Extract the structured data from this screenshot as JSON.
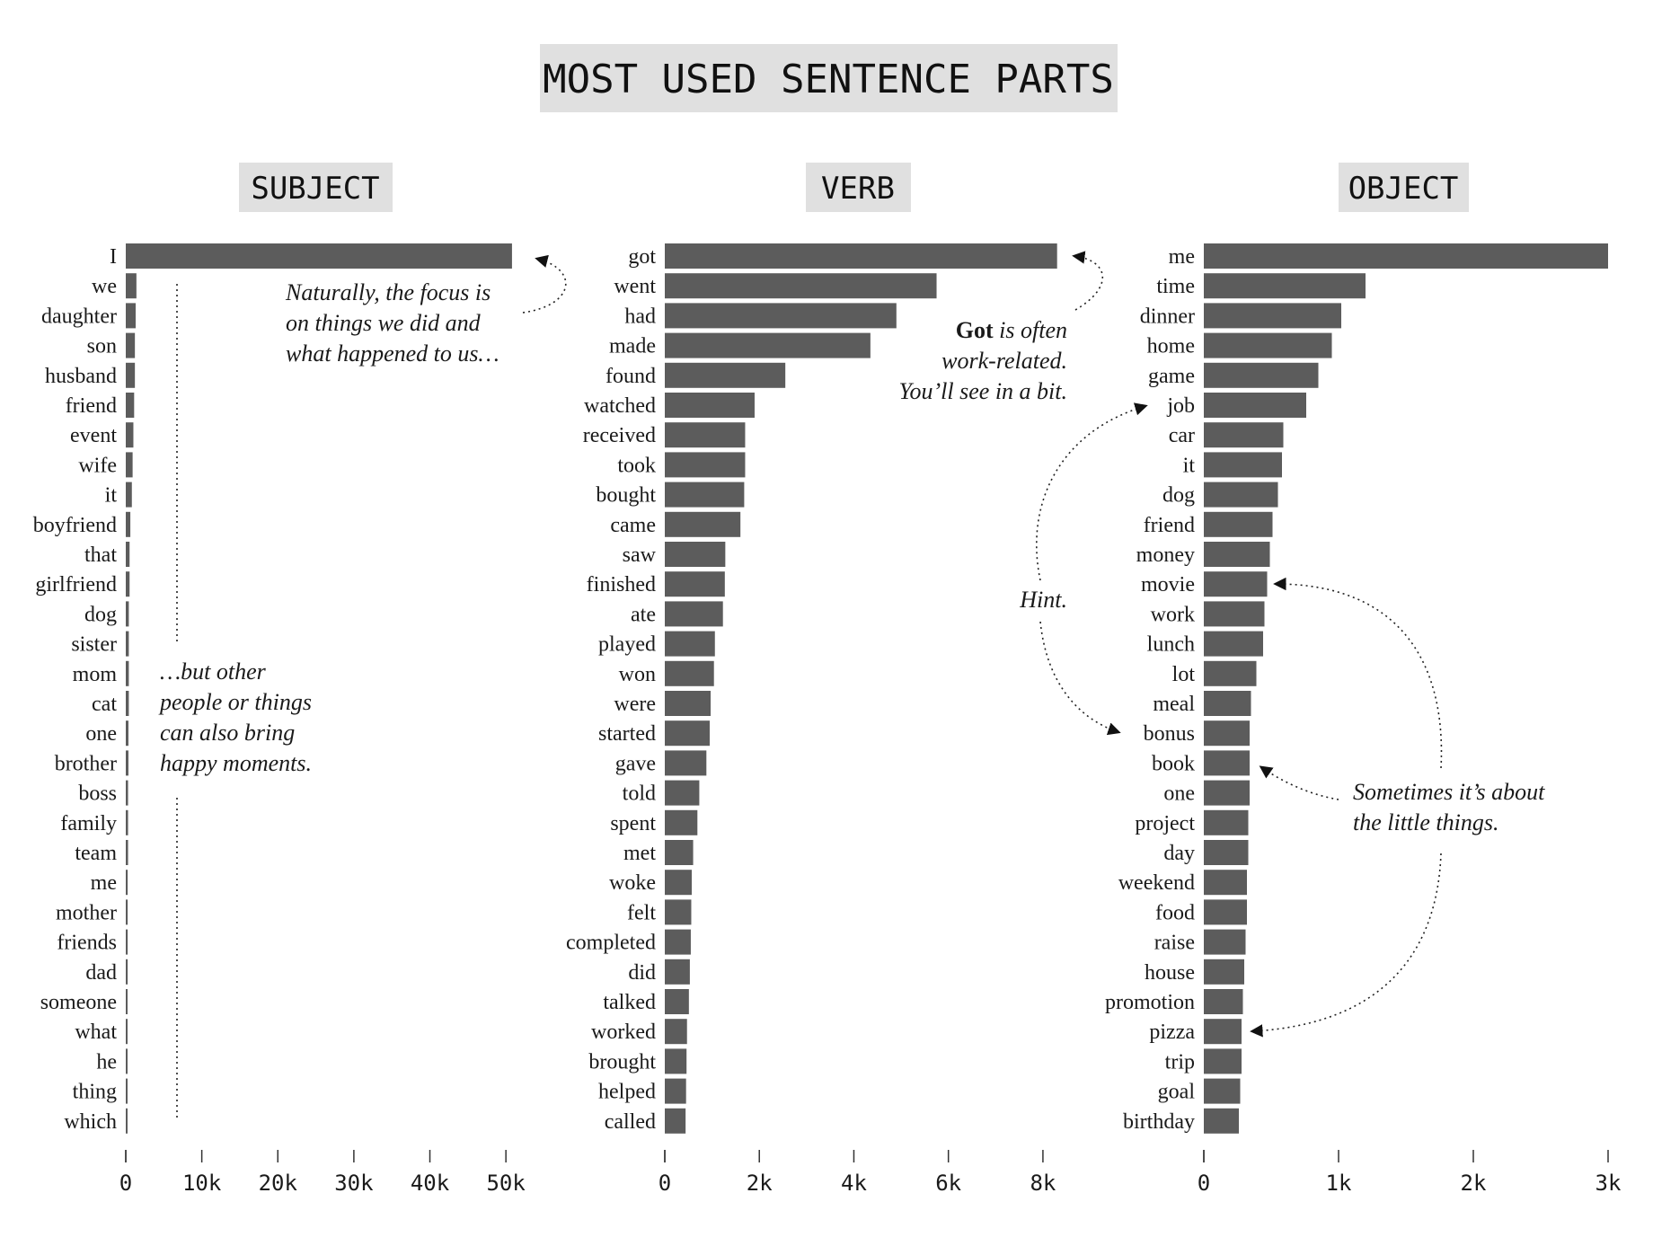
{
  "title": "MOST USED SENTENCE PARTS",
  "colors": {
    "bar": "#5c5c5c",
    "title_box": "#e0e0e0",
    "text": "#1a1a1a"
  },
  "chart_data": [
    {
      "type": "bar",
      "orientation": "horizontal",
      "title": "SUBJECT",
      "categories": [
        "I",
        "we",
        "daughter",
        "son",
        "husband",
        "friend",
        "event",
        "wife",
        "it",
        "boyfriend",
        "that",
        "girlfriend",
        "dog",
        "sister",
        "mom",
        "cat",
        "one",
        "brother",
        "boss",
        "family",
        "team",
        "me",
        "mother",
        "friends",
        "dad",
        "someone",
        "what",
        "he",
        "thing",
        "which"
      ],
      "values": [
        50800,
        1400,
        1300,
        1200,
        1200,
        1100,
        1000,
        900,
        800,
        600,
        500,
        500,
        400,
        400,
        400,
        400,
        350,
        350,
        300,
        300,
        300,
        250,
        250,
        250,
        250,
        200,
        200,
        200,
        200,
        200
      ],
      "xlim": [
        0,
        54000
      ],
      "xticks": [
        0,
        10000,
        20000,
        30000,
        40000,
        50000
      ],
      "xtick_labels": [
        "0",
        "10k",
        "20k",
        "30k",
        "40k",
        "50k"
      ],
      "grid": false
    },
    {
      "type": "bar",
      "orientation": "horizontal",
      "title": "VERB",
      "categories": [
        "got",
        "went",
        "had",
        "made",
        "found",
        "watched",
        "received",
        "took",
        "bought",
        "came",
        "saw",
        "finished",
        "ate",
        "played",
        "won",
        "were",
        "started",
        "gave",
        "told",
        "spent",
        "met",
        "woke",
        "felt",
        "completed",
        "did",
        "talked",
        "worked",
        "brought",
        "helped",
        "called"
      ],
      "values": [
        8300,
        5750,
        4900,
        4350,
        2550,
        1900,
        1700,
        1700,
        1680,
        1600,
        1280,
        1270,
        1230,
        1060,
        1040,
        970,
        950,
        880,
        730,
        690,
        600,
        570,
        560,
        550,
        530,
        510,
        470,
        460,
        450,
        440
      ],
      "xlim": [
        0,
        8800
      ],
      "xticks": [
        0,
        2000,
        4000,
        6000,
        8000
      ],
      "xtick_labels": [
        "0",
        "2k",
        "4k",
        "6k",
        "8k"
      ],
      "grid": false
    },
    {
      "type": "bar",
      "orientation": "horizontal",
      "title": "OBJECT",
      "categories": [
        "me",
        "time",
        "dinner",
        "home",
        "game",
        "job",
        "car",
        "it",
        "dog",
        "friend",
        "money",
        "movie",
        "work",
        "lunch",
        "lot",
        "meal",
        "bonus",
        "book",
        "one",
        "project",
        "day",
        "weekend",
        "food",
        "raise",
        "house",
        "promotion",
        "pizza",
        "trip",
        "goal",
        "birthday"
      ],
      "values": [
        3000,
        1200,
        1020,
        950,
        850,
        760,
        590,
        580,
        550,
        510,
        490,
        470,
        450,
        440,
        390,
        350,
        340,
        340,
        340,
        330,
        330,
        320,
        320,
        310,
        300,
        290,
        280,
        280,
        270,
        260
      ],
      "xlim": [
        0,
        3000
      ],
      "xticks": [
        0,
        1000,
        2000,
        3000
      ],
      "xtick_labels": [
        "0",
        "1k",
        "2k",
        "3k"
      ],
      "grid": false
    }
  ],
  "annotations": {
    "subject_top": [
      "Naturally, the focus is",
      "on things we did and",
      "what happened to us…"
    ],
    "subject_bottom": [
      "…but other",
      "people or things",
      "can also bring",
      "happy moments."
    ],
    "verb_got_bold": "Got",
    "verb_got_rest": " is often",
    "verb_got_lines": [
      "work-related.",
      "You’ll see in a bit."
    ],
    "hint": "Hint.",
    "object_little": [
      "Sometimes it’s about",
      "the little things."
    ]
  }
}
